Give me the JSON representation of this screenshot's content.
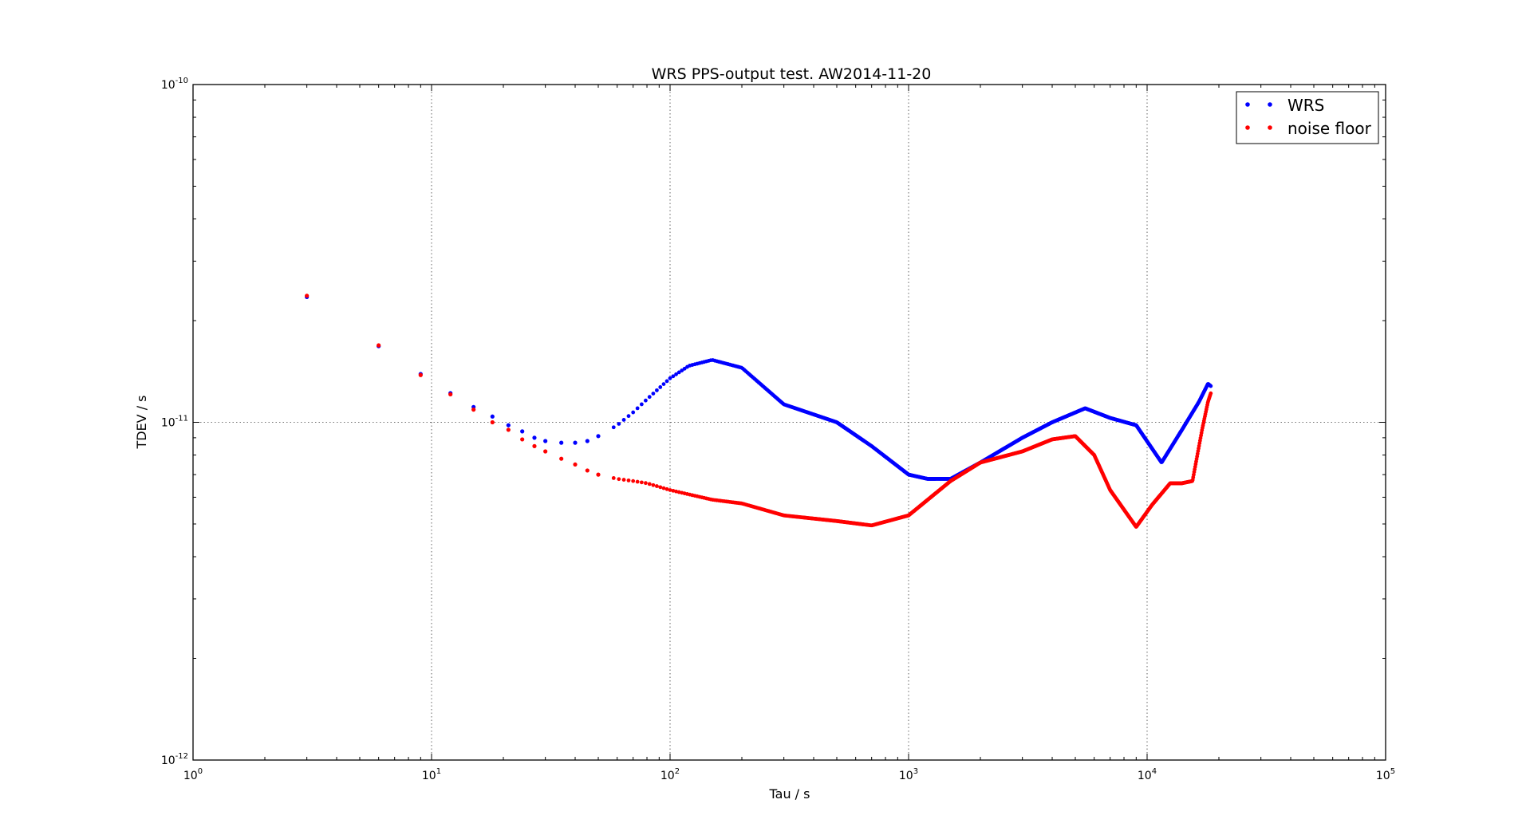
{
  "chart_data": {
    "type": "scatter",
    "title": "WRS PPS-output test. AW2014-11-20",
    "xlabel": "Tau / s",
    "ylabel": "TDEV / s",
    "xscale": "log",
    "yscale": "log",
    "xlim": [
      1,
      100000
    ],
    "ylim": [
      1e-12,
      1e-10
    ],
    "grid": true,
    "legend_position": "top-right",
    "x_ticks": [
      {
        "base": "10",
        "exp": "0",
        "value": 1
      },
      {
        "base": "10",
        "exp": "1",
        "value": 10
      },
      {
        "base": "10",
        "exp": "2",
        "value": 100
      },
      {
        "base": "10",
        "exp": "3",
        "value": 1000
      },
      {
        "base": "10",
        "exp": "4",
        "value": 10000
      },
      {
        "base": "10",
        "exp": "5",
        "value": 100000
      }
    ],
    "y_ticks": [
      {
        "base": "10",
        "exp": "-12",
        "value": 1e-12
      },
      {
        "base": "10",
        "exp": "-11",
        "value": 1e-11
      },
      {
        "base": "10",
        "exp": "-10",
        "value": 1e-10
      }
    ],
    "series": [
      {
        "name": "WRS",
        "color": "#0000ff",
        "marker": "dot",
        "dense_after_x": 55,
        "x": [
          3,
          6,
          9,
          12,
          15,
          18,
          21,
          24,
          27,
          30,
          35,
          40,
          45,
          50,
          60,
          70,
          80,
          100,
          120,
          150,
          200,
          300,
          500,
          700,
          1000,
          1200,
          1500,
          2000,
          3000,
          4000,
          5500,
          7000,
          9000,
          11500,
          14000,
          16500,
          18000,
          18500
        ],
        "y": [
          2.35e-11,
          1.68e-11,
          1.39e-11,
          1.22e-11,
          1.11e-11,
          1.04e-11,
          9.8e-12,
          9.4e-12,
          9e-12,
          8.8e-12,
          8.7e-12,
          8.7e-12,
          8.8e-12,
          9.1e-12,
          9.8e-12,
          1.07e-11,
          1.17e-11,
          1.35e-11,
          1.47e-11,
          1.53e-11,
          1.45e-11,
          1.13e-11,
          1e-11,
          8.5e-12,
          7e-12,
          6.8e-12,
          6.8e-12,
          7.6e-12,
          9e-12,
          1e-11,
          1.1e-11,
          1.03e-11,
          9.8e-12,
          7.6e-12,
          9.5e-12,
          1.15e-11,
          1.3e-11,
          1.28e-11
        ]
      },
      {
        "name": "noise floor",
        "color": "#ff0000",
        "marker": "dot",
        "dense_after_x": 55,
        "x": [
          3,
          6,
          9,
          12,
          15,
          18,
          21,
          24,
          27,
          30,
          35,
          40,
          45,
          50,
          60,
          70,
          80,
          100,
          150,
          200,
          300,
          500,
          700,
          1000,
          1500,
          2000,
          3000,
          4000,
          5000,
          6000,
          7000,
          9000,
          10500,
          12500,
          14000,
          15500,
          17000,
          18000,
          18500
        ],
        "y": [
          2.37e-11,
          1.69e-11,
          1.38e-11,
          1.21e-11,
          1.09e-11,
          1e-11,
          9.5e-12,
          8.9e-12,
          8.5e-12,
          8.2e-12,
          7.8e-12,
          7.5e-12,
          7.2e-12,
          7e-12,
          6.8e-12,
          6.7e-12,
          6.6e-12,
          6.3e-12,
          5.9e-12,
          5.75e-12,
          5.3e-12,
          5.1e-12,
          4.95e-12,
          5.3e-12,
          6.7e-12,
          7.6e-12,
          8.2e-12,
          8.9e-12,
          9.1e-12,
          8e-12,
          6.3e-12,
          4.9e-12,
          5.7e-12,
          6.6e-12,
          6.6e-12,
          6.7e-12,
          9.5e-12,
          1.15e-11,
          1.22e-11
        ]
      }
    ]
  }
}
